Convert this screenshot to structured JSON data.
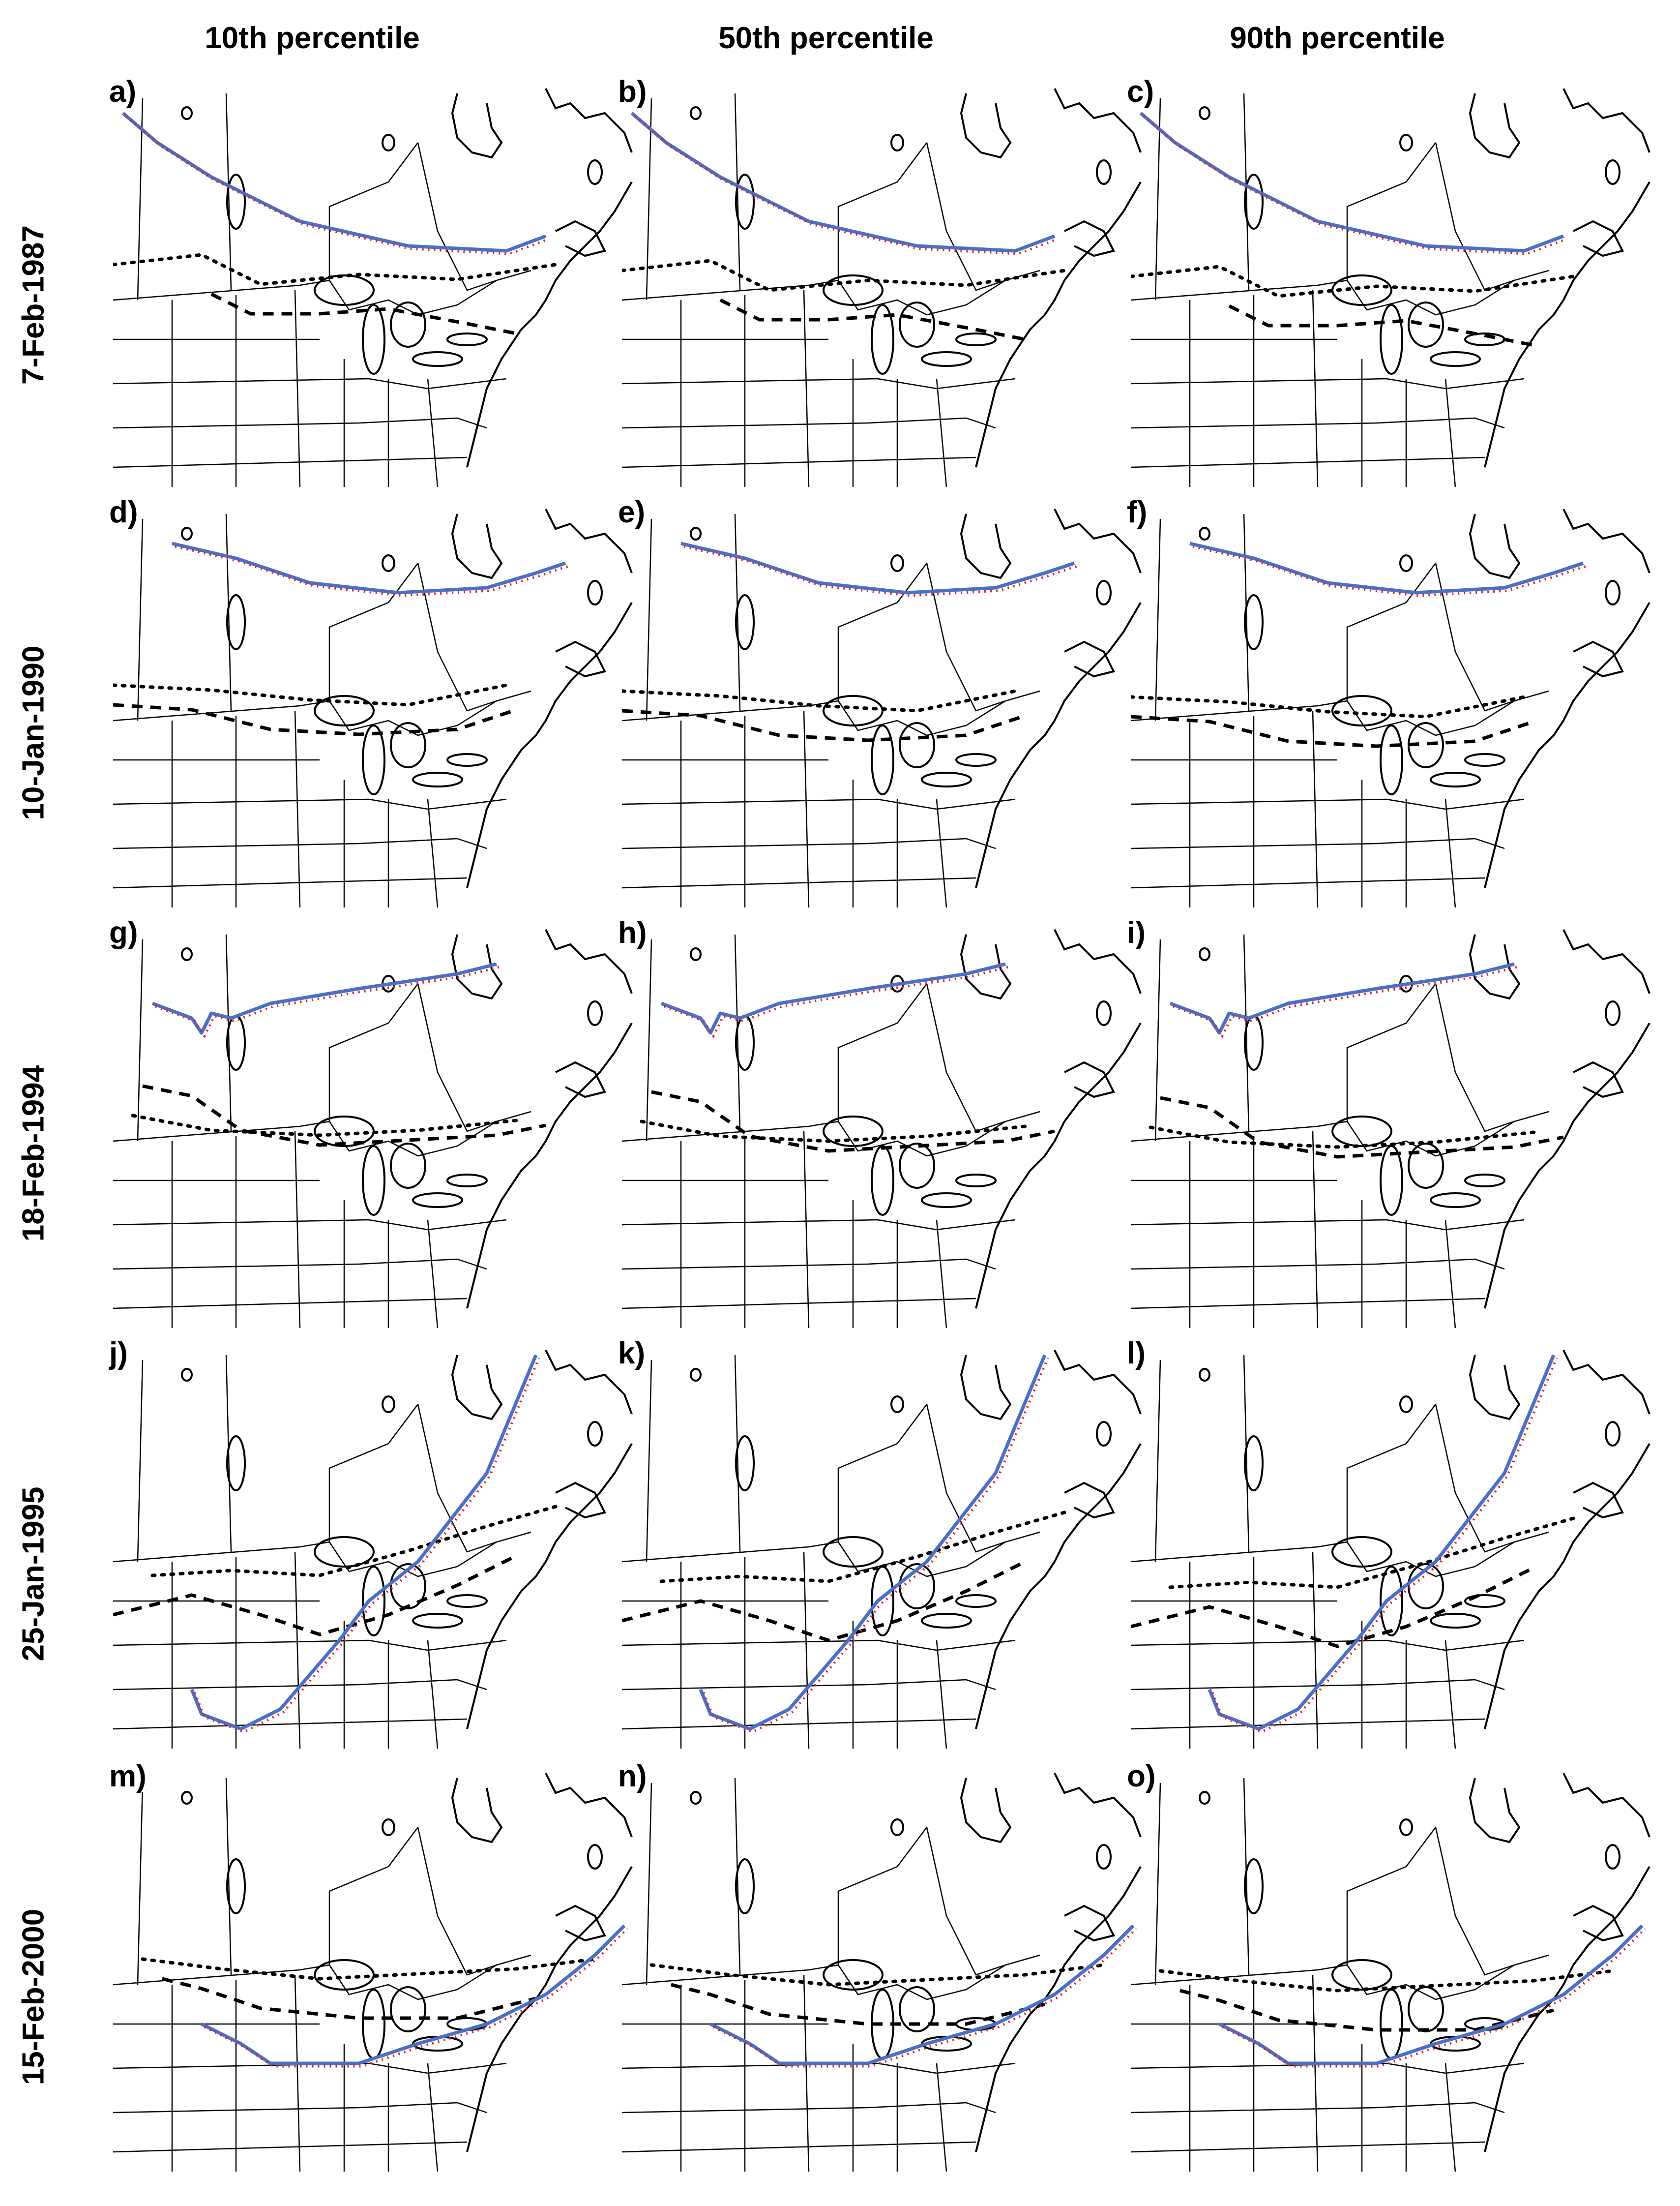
{
  "columns": [
    "10th percentile",
    "50th percentile",
    "90th percentile"
  ],
  "rows": [
    "7-Feb-1987",
    "10-Jan-1990",
    "18-Feb-1994",
    "25-Jan-1995",
    "15-Feb-2000"
  ],
  "panels": [
    {
      "label": "a)"
    },
    {
      "label": "b)"
    },
    {
      "label": "c)"
    },
    {
      "label": "d)"
    },
    {
      "label": "e)"
    },
    {
      "label": "f)"
    },
    {
      "label": "g)"
    },
    {
      "label": "h)"
    },
    {
      "label": "i)"
    },
    {
      "label": "j)"
    },
    {
      "label": "k)"
    },
    {
      "label": "l)"
    },
    {
      "label": "m)"
    },
    {
      "label": "n)"
    },
    {
      "label": "o)"
    }
  ],
  "colors": {
    "solid_line": "#4a6fc4",
    "red_dotted_line": "#e0202a",
    "black_dashed_line": "#000000",
    "map_outline": "#000000"
  }
}
